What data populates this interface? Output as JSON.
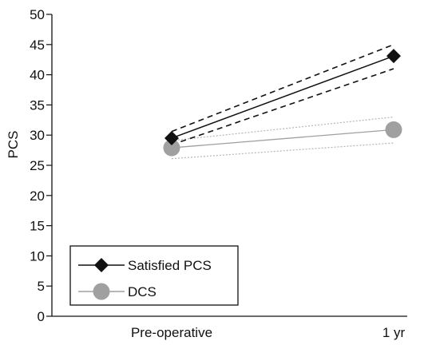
{
  "chart_data": {
    "type": "line",
    "title": "",
    "xlabel": "",
    "ylabel": "PCS",
    "categories": [
      "Pre-operative",
      "1 yr"
    ],
    "ylim": [
      0,
      50
    ],
    "yticks": [
      0,
      5,
      10,
      15,
      20,
      25,
      30,
      35,
      40,
      45,
      50
    ],
    "grid": false,
    "legend_position": "bottom-left",
    "series": [
      {
        "name": "Satisfied PCS",
        "values": [
          29.5,
          43.1
        ],
        "ci_lower": [
          28.4,
          41.0
        ],
        "ci_upper": [
          30.6,
          45.0
        ],
        "color": "#111111",
        "ci_color": "#111111",
        "marker": "diamond",
        "ci_style": "dashed"
      },
      {
        "name": "DCS",
        "values": [
          27.9,
          30.9
        ],
        "ci_lower": [
          26.1,
          28.7
        ],
        "ci_upper": [
          29.1,
          33.0
        ],
        "color": "#a0a0a0",
        "ci_color": "#b5b5b5",
        "marker": "circle",
        "ci_style": "dotted"
      }
    ]
  }
}
